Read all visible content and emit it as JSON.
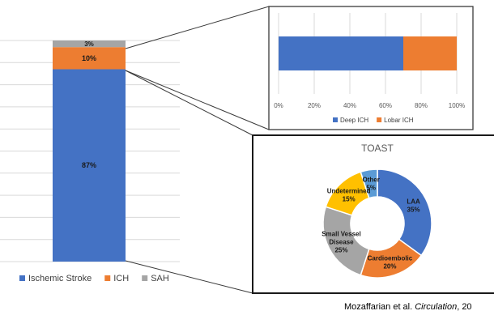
{
  "chart_data": [
    {
      "type": "bar",
      "stacked": true,
      "orientation": "vertical",
      "categories": [
        ""
      ],
      "series": [
        {
          "name": "Ischemic Stroke",
          "values": [
            87
          ],
          "label": "87%",
          "color": "#4472C4"
        },
        {
          "name": "ICH",
          "values": [
            10
          ],
          "label": "10%",
          "color": "#ED7D31"
        },
        {
          "name": "SAH",
          "values": [
            3
          ],
          "label": "3%",
          "color": "#A5A5A5"
        }
      ],
      "ylim": [
        0,
        100
      ],
      "grid": true,
      "legend": "bottom"
    },
    {
      "type": "bar",
      "stacked": true,
      "orientation": "horizontal",
      "categories": [
        ""
      ],
      "series": [
        {
          "name": "Deep ICH",
          "values": [
            70
          ],
          "color": "#4472C4"
        },
        {
          "name": "Lobar ICH",
          "values": [
            30
          ],
          "color": "#ED7D31"
        }
      ],
      "xlim": [
        0,
        100
      ],
      "xticks": [
        "0%",
        "20%",
        "40%",
        "60%",
        "80%",
        "100%"
      ],
      "grid": true,
      "legend": "bottom"
    },
    {
      "type": "pie",
      "donut": true,
      "title": "TOAST",
      "slices": [
        {
          "label": "LAA",
          "value": 35,
          "pct": "35%",
          "color": "#4472C4"
        },
        {
          "label": "Cardioembolic",
          "value": 20,
          "pct": "20%",
          "color": "#ED7D31"
        },
        {
          "label": "Small Vessel Disease",
          "label_lines": [
            "Small Vessel",
            "Disease"
          ],
          "value": 25,
          "pct": "25%",
          "color": "#A5A5A5"
        },
        {
          "label": "Undetermined",
          "value": 15,
          "pct": "15%",
          "color": "#FFC000"
        },
        {
          "label": "Other",
          "value": 5,
          "pct": "5%",
          "color": "#5B9BD5"
        }
      ]
    }
  ],
  "citation": {
    "prefix": "Mozaffarian et al. ",
    "journal": "Circulation",
    "suffix": ", 20"
  }
}
